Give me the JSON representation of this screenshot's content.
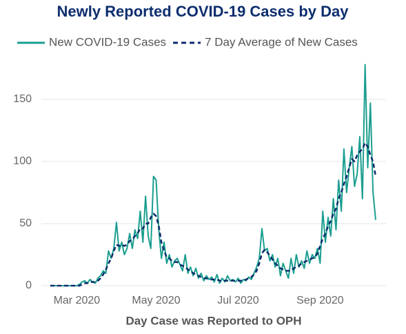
{
  "chart_data": {
    "type": "line",
    "title": "Newly Reported COVID-19 Cases by Day",
    "x_label": "Day Case was Reported to OPH",
    "categories": [
      null,
      null,
      null,
      null,
      null,
      null,
      null,
      null,
      null,
      null,
      "Mar 2020",
      null,
      null,
      null,
      null,
      null,
      null,
      null,
      null,
      null,
      null,
      null,
      null,
      null,
      null,
      null,
      null,
      null,
      null,
      null,
      null,
      null,
      null,
      null,
      null,
      null,
      null,
      null,
      null,
      null,
      "May 2020",
      null,
      null,
      null,
      null,
      null,
      null,
      null,
      null,
      null,
      null,
      null,
      null,
      null,
      null,
      null,
      null,
      null,
      null,
      null,
      null,
      null,
      null,
      null,
      null,
      null,
      null,
      null,
      null,
      null,
      null,
      "Jul 2020",
      null,
      null,
      null,
      null,
      null,
      null,
      null,
      null,
      null,
      null,
      null,
      null,
      null,
      null,
      null,
      null,
      null,
      null,
      null,
      null,
      null,
      null,
      null,
      null,
      null,
      null,
      null,
      null,
      null,
      null,
      "Sep 2020",
      null,
      null,
      null,
      null,
      null,
      null,
      null,
      null,
      null,
      null,
      null,
      null,
      null,
      null,
      null,
      null,
      null,
      null,
      null,
      null,
      null
    ],
    "series": [
      {
        "name": "New COVID-19 Cases",
        "color": "#1a9e8f",
        "dashed": false,
        "values": [
          0,
          0,
          0,
          0,
          0,
          0,
          0,
          0,
          0,
          0,
          0,
          1,
          3,
          4,
          2,
          5,
          3,
          2,
          6,
          8,
          12,
          10,
          28,
          22,
          30,
          51,
          28,
          35,
          25,
          30,
          42,
          30,
          45,
          38,
          60,
          35,
          72,
          40,
          30,
          88,
          85,
          45,
          22,
          35,
          18,
          25,
          15,
          20,
          22,
          17,
          12,
          25,
          10,
          15,
          8,
          14,
          6,
          10,
          4,
          8,
          5,
          7,
          3,
          9,
          2,
          6,
          3,
          8,
          4,
          5,
          3,
          6,
          2,
          5,
          4,
          7,
          5,
          10,
          15,
          22,
          46,
          28,
          30,
          20,
          25,
          15,
          22,
          8,
          18,
          12,
          6,
          22,
          10,
          25,
          15,
          20,
          14,
          28,
          18,
          25,
          22,
          30,
          18,
          60,
          35,
          55,
          40,
          70,
          45,
          85,
          60,
          110,
          75,
          95,
          112,
          80,
          90,
          120,
          70,
          178,
          95,
          147,
          75,
          53
        ]
      },
      {
        "name": "7 Day Average of New Cases",
        "color": "#0b2a6b",
        "dashed": true,
        "values": [
          0,
          0,
          0,
          0,
          0,
          0,
          0,
          0,
          0,
          0,
          0,
          0,
          1,
          2,
          2,
          3,
          3,
          3,
          4,
          6,
          9,
          13,
          18,
          22,
          28,
          33,
          32,
          33,
          32,
          33,
          36,
          37,
          40,
          42,
          46,
          46,
          50,
          50,
          55,
          58,
          56,
          48,
          35,
          28,
          23,
          22,
          20,
          19,
          19,
          17,
          16,
          15,
          13,
          12,
          10,
          9,
          8,
          7,
          6,
          6,
          5,
          5,
          5,
          5,
          4,
          4,
          4,
          4,
          4,
          4,
          4,
          4,
          4,
          4,
          5,
          6,
          7,
          9,
          12,
          18,
          26,
          29,
          27,
          24,
          21,
          18,
          16,
          14,
          13,
          12,
          12,
          12,
          14,
          15,
          16,
          18,
          19,
          20,
          21,
          22,
          23,
          26,
          32,
          38,
          42,
          48,
          52,
          58,
          62,
          70,
          75,
          82,
          88,
          95,
          102,
          100,
          105,
          108,
          110,
          115,
          112,
          105,
          100,
          88
        ]
      }
    ],
    "ylim": [
      0,
      180
    ],
    "yticks": [
      0,
      50,
      100,
      150
    ],
    "grid": true,
    "legend": "top"
  }
}
